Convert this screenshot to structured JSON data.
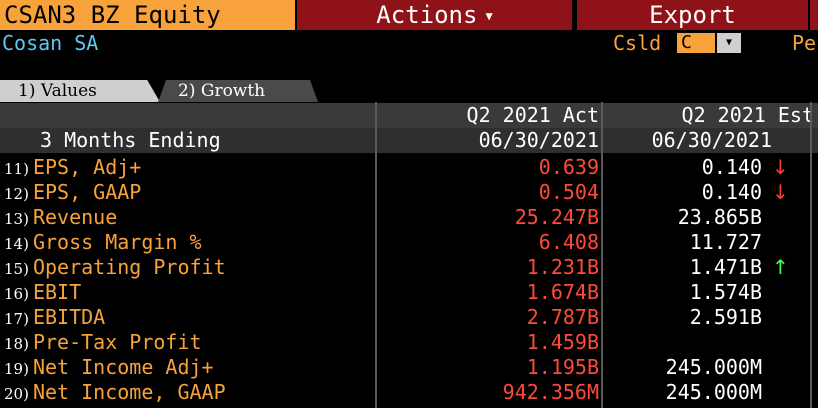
{
  "header": {
    "ticker": "CSAN3 BZ Equity",
    "actions_label": "Actions",
    "export_label": "Export"
  },
  "subheader": {
    "company_name": "Cosan SA",
    "csld_label": "Csld",
    "csld_value": "C",
    "pe_label": "Pe"
  },
  "tabs": [
    {
      "num": "1)",
      "label": "Values"
    },
    {
      "num": "2)",
      "label": "Growth"
    }
  ],
  "table": {
    "period_label": "3 Months Ending",
    "columns": [
      {
        "title": "Q2 2021 Act",
        "date": "06/30/2021"
      },
      {
        "title": "Q2 2021 Est",
        "date": "06/30/2021"
      }
    ],
    "rows": [
      {
        "num": "11)",
        "label": "EPS, Adj+",
        "actual": "0.639",
        "estimate": "0.140",
        "trend": "↓"
      },
      {
        "num": "12)",
        "label": "EPS, GAAP",
        "actual": "0.504",
        "estimate": "0.140",
        "trend": "↓"
      },
      {
        "num": "13)",
        "label": "Revenue",
        "actual": "25.247B",
        "estimate": "23.865B",
        "trend": ""
      },
      {
        "num": "14)",
        "label": "Gross Margin %",
        "actual": "6.408",
        "estimate": "11.727",
        "trend": ""
      },
      {
        "num": "15)",
        "label": "Operating Profit",
        "actual": "1.231B",
        "estimate": "1.471B",
        "trend": "↑"
      },
      {
        "num": "16)",
        "label": "EBIT",
        "actual": "1.674B",
        "estimate": "1.574B",
        "trend": ""
      },
      {
        "num": "17)",
        "label": "EBITDA",
        "actual": "2.787B",
        "estimate": "2.591B",
        "trend": ""
      },
      {
        "num": "18)",
        "label": "Pre-Tax Profit",
        "actual": "1.459B",
        "estimate": "",
        "trend": ""
      },
      {
        "num": "19)",
        "label": "Net Income Adj+",
        "actual": "1.195B",
        "estimate": "245.000M",
        "trend": ""
      },
      {
        "num": "20)",
        "label": "Net Income, GAAP",
        "actual": "942.356M",
        "estimate": "245.000M",
        "trend": ""
      }
    ]
  },
  "colors": {
    "amber": "#f7a23a",
    "menu_red": "#8e1218",
    "company_blue": "#5fc7f0",
    "actual_red": "#ff4a3a",
    "down_arrow": "#ff3a2a",
    "up_arrow": "#4dff4d"
  }
}
